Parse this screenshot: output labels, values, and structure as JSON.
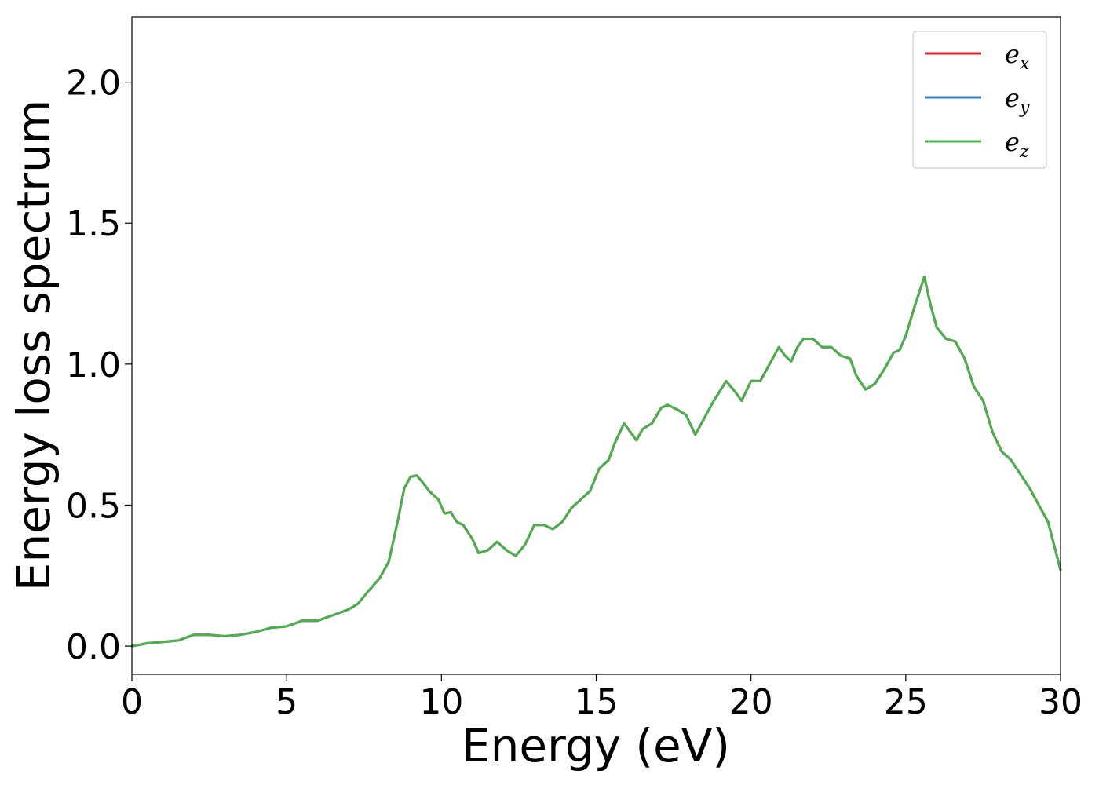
{
  "chart_data": {
    "type": "line",
    "xlabel": "Energy (eV)",
    "ylabel": "Energy loss spectrum",
    "xlim": [
      0,
      30
    ],
    "ylim": [
      -0.1,
      2.23
    ],
    "xticks": [
      0,
      5,
      10,
      15,
      20,
      25,
      30
    ],
    "xtick_labels": [
      "0",
      "5",
      "10",
      "15",
      "20",
      "25",
      "30"
    ],
    "yticks": [
      0.0,
      0.5,
      1.0,
      1.5,
      2.0
    ],
    "ytick_labels": [
      "0.0",
      "0.5",
      "1.0",
      "1.5",
      "2.0"
    ],
    "grid": false,
    "legend_position": "top-right",
    "x": [
      0,
      0.5,
      1.0,
      1.5,
      2.0,
      2.5,
      3.0,
      3.5,
      4.0,
      4.5,
      5.0,
      5.5,
      6.0,
      6.5,
      7.0,
      7.3,
      7.6,
      8.0,
      8.3,
      8.6,
      8.8,
      9.0,
      9.2,
      9.4,
      9.6,
      9.9,
      10.1,
      10.3,
      10.5,
      10.7,
      11.0,
      11.2,
      11.5,
      11.8,
      12.1,
      12.4,
      12.7,
      13.0,
      13.3,
      13.6,
      13.9,
      14.2,
      14.5,
      14.8,
      15.1,
      15.4,
      15.6,
      15.9,
      16.1,
      16.3,
      16.5,
      16.8,
      17.1,
      17.3,
      17.6,
      17.9,
      18.2,
      18.5,
      18.8,
      19.2,
      19.5,
      19.7,
      20.0,
      20.3,
      20.6,
      20.9,
      21.1,
      21.3,
      21.5,
      21.7,
      22.0,
      22.3,
      22.6,
      22.9,
      23.2,
      23.4,
      23.7,
      24.0,
      24.3,
      24.6,
      24.8,
      25.0,
      25.3,
      25.6,
      25.8,
      26.0,
      26.3,
      26.6,
      26.9,
      27.2,
      27.5,
      27.8,
      28.1,
      28.4,
      28.7,
      29.0,
      29.3,
      29.6,
      30.0
    ],
    "series": [
      {
        "name": "e_x",
        "color": "#d62728",
        "values": [
          0.0,
          0.01,
          0.015,
          0.02,
          0.04,
          0.04,
          0.035,
          0.04,
          0.05,
          0.065,
          0.07,
          0.09,
          0.09,
          0.11,
          0.13,
          0.15,
          0.19,
          0.24,
          0.3,
          0.45,
          0.56,
          0.6,
          0.605,
          0.58,
          0.55,
          0.52,
          0.47,
          0.475,
          0.44,
          0.43,
          0.38,
          0.33,
          0.34,
          0.37,
          0.34,
          0.32,
          0.36,
          0.43,
          0.43,
          0.415,
          0.44,
          0.49,
          0.52,
          0.55,
          0.63,
          0.66,
          0.72,
          0.79,
          0.76,
          0.73,
          0.77,
          0.79,
          0.845,
          0.855,
          0.84,
          0.82,
          0.75,
          0.81,
          0.87,
          0.94,
          0.9,
          0.87,
          0.94,
          0.94,
          1.0,
          1.06,
          1.03,
          1.01,
          1.06,
          1.09,
          1.09,
          1.06,
          1.06,
          1.03,
          1.02,
          0.96,
          0.91,
          0.93,
          0.98,
          1.04,
          1.05,
          1.1,
          1.21,
          1.31,
          1.21,
          1.13,
          1.09,
          1.08,
          1.02,
          0.92,
          0.87,
          0.76,
          0.69,
          0.66,
          0.61,
          0.56,
          0.5,
          0.44,
          0.27
        ]
      },
      {
        "name": "e_y",
        "color": "#377eb8",
        "values": [
          0.0,
          0.01,
          0.015,
          0.02,
          0.04,
          0.04,
          0.035,
          0.04,
          0.05,
          0.065,
          0.07,
          0.09,
          0.09,
          0.11,
          0.13,
          0.15,
          0.19,
          0.24,
          0.3,
          0.45,
          0.56,
          0.6,
          0.605,
          0.58,
          0.55,
          0.52,
          0.47,
          0.475,
          0.44,
          0.43,
          0.38,
          0.33,
          0.34,
          0.37,
          0.34,
          0.32,
          0.36,
          0.43,
          0.43,
          0.415,
          0.44,
          0.49,
          0.52,
          0.55,
          0.63,
          0.66,
          0.72,
          0.79,
          0.76,
          0.73,
          0.77,
          0.79,
          0.845,
          0.855,
          0.84,
          0.82,
          0.75,
          0.81,
          0.87,
          0.94,
          0.9,
          0.87,
          0.94,
          0.94,
          1.0,
          1.06,
          1.03,
          1.01,
          1.06,
          1.09,
          1.09,
          1.06,
          1.06,
          1.03,
          1.02,
          0.96,
          0.91,
          0.93,
          0.98,
          1.04,
          1.05,
          1.1,
          1.21,
          1.31,
          1.21,
          1.13,
          1.09,
          1.08,
          1.02,
          0.92,
          0.87,
          0.76,
          0.69,
          0.66,
          0.61,
          0.56,
          0.5,
          0.44,
          0.27
        ]
      },
      {
        "name": "e_z",
        "color": "#4daf4a",
        "values": [
          0.0,
          0.01,
          0.015,
          0.02,
          0.04,
          0.04,
          0.035,
          0.04,
          0.05,
          0.065,
          0.07,
          0.09,
          0.09,
          0.11,
          0.13,
          0.15,
          0.19,
          0.24,
          0.3,
          0.45,
          0.56,
          0.6,
          0.605,
          0.58,
          0.55,
          0.52,
          0.47,
          0.475,
          0.44,
          0.43,
          0.38,
          0.33,
          0.34,
          0.37,
          0.34,
          0.32,
          0.36,
          0.43,
          0.43,
          0.415,
          0.44,
          0.49,
          0.52,
          0.55,
          0.63,
          0.66,
          0.72,
          0.79,
          0.76,
          0.73,
          0.77,
          0.79,
          0.845,
          0.855,
          0.84,
          0.82,
          0.75,
          0.81,
          0.87,
          0.94,
          0.9,
          0.87,
          0.94,
          0.94,
          1.0,
          1.06,
          1.03,
          1.01,
          1.06,
          1.09,
          1.09,
          1.06,
          1.06,
          1.03,
          1.02,
          0.96,
          0.91,
          0.93,
          0.98,
          1.04,
          1.05,
          1.1,
          1.21,
          1.31,
          1.21,
          1.13,
          1.09,
          1.08,
          1.02,
          0.92,
          0.87,
          0.76,
          0.69,
          0.66,
          0.61,
          0.56,
          0.5,
          0.44,
          0.27
        ]
      }
    ],
    "legend": [
      {
        "base": "e",
        "sub": "x",
        "color": "#d62728"
      },
      {
        "base": "e",
        "sub": "y",
        "color": "#377eb8"
      },
      {
        "base": "e",
        "sub": "z",
        "color": "#4daf4a"
      }
    ]
  }
}
